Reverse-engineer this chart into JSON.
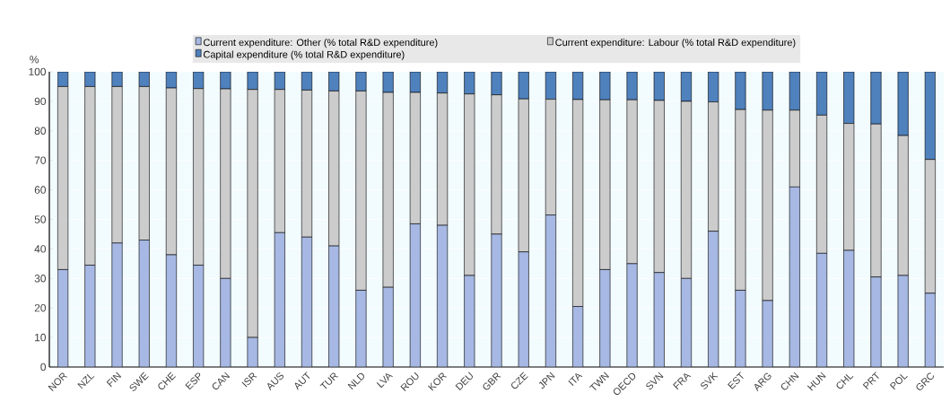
{
  "chart_data": {
    "type": "bar",
    "stacked": true,
    "ylabel": "%",
    "categories": [
      "NOR",
      "NZL",
      "FIN",
      "SWE",
      "CHE",
      "ESP",
      "CAN",
      "ISR",
      "AUS",
      "AUT",
      "TUR",
      "NLD",
      "LVA",
      "ROU",
      "KOR",
      "DEU",
      "GBR",
      "CZE",
      "JPN",
      "ITA",
      "TWN",
      "OECD",
      "SVN",
      "FRA",
      "SVK",
      "EST",
      "ARG",
      "CHN",
      "HUN",
      "CHL",
      "PRT",
      "POL",
      "GRC"
    ],
    "series": [
      {
        "name": "Current expenditure: Other (% total R&D expenditure)",
        "color": "#a6b8e3",
        "values": [
          33,
          34.5,
          42,
          43,
          38,
          34.5,
          30,
          10,
          45.5,
          44,
          41,
          26,
          27,
          48.5,
          48,
          31,
          45,
          39,
          51.5,
          20.5,
          33,
          35,
          32,
          30,
          46,
          26,
          22.5,
          61,
          38.5,
          39.5,
          30.5,
          31,
          25
        ]
      },
      {
        "name": "Current expenditure: Labour (% total R&D expenditure)",
        "color": "#cccccc",
        "values": [
          62,
          60.5,
          53,
          52,
          56.5,
          59.8,
          64.2,
          84,
          48.5,
          49.8,
          52.5,
          67.5,
          66,
          44.5,
          44.8,
          61.5,
          47.2,
          51.8,
          39.2,
          70.1,
          57.5,
          55.5,
          58.3,
          60,
          43.8,
          61.2,
          64.5,
          26,
          46.8,
          43,
          51.8,
          47.4,
          45.3
        ]
      },
      {
        "name": "Capital expenditure (% total R&D expenditure)",
        "color": "#4f81bd",
        "values": [
          5,
          5,
          5,
          5,
          5.5,
          5.7,
          5.8,
          6,
          6,
          6.2,
          6.5,
          6.5,
          7,
          7,
          7.2,
          7.5,
          7.8,
          9.2,
          9.3,
          9.4,
          9.5,
          9.5,
          9.7,
          10,
          10.2,
          12.8,
          13,
          13,
          14.7,
          17.5,
          17.7,
          21.6,
          29.7
        ]
      }
    ],
    "ylim": [
      0,
      100
    ],
    "yticks": [
      0,
      10,
      20,
      30,
      40,
      50,
      60,
      70,
      80,
      90,
      100
    ],
    "grid": "y",
    "legend": "top"
  }
}
